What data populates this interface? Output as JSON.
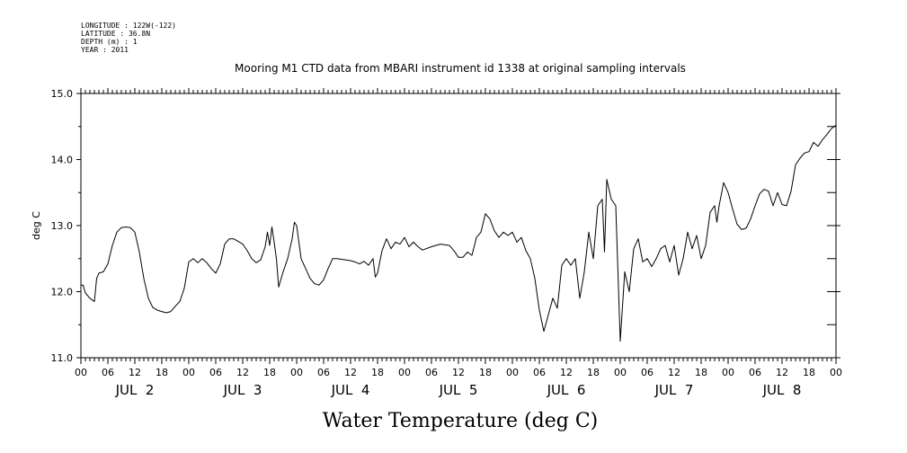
{
  "header": {
    "longitude": "LONGITUDE : 122W(-122)",
    "latitude": "LATITUDE : 36.8N",
    "depth": "DEPTH (m) : 1",
    "year": "YEAR : 2011"
  },
  "chart_data": {
    "type": "line",
    "title": "Mooring M1 CTD data from MBARI instrument id 1338 at original sampling intervals",
    "ylabel": "deg C",
    "xlabel": "Water Temperature (deg C)",
    "ylim": [
      11.0,
      15.0
    ],
    "xlim_hours": [
      0,
      168
    ],
    "y_ticks": [
      "11.0",
      "12.0",
      "13.0",
      "14.0",
      "15.0"
    ],
    "x_hour_ticks": [
      "00",
      "06",
      "12",
      "18",
      "00",
      "06",
      "12",
      "18",
      "00",
      "06",
      "12",
      "18",
      "00",
      "06",
      "12",
      "18",
      "00",
      "06",
      "12",
      "18",
      "00",
      "06",
      "12",
      "18",
      "00",
      "06",
      "12",
      "18",
      "00"
    ],
    "day_labels": [
      "JUL  2",
      "JUL  3",
      "JUL  4",
      "JUL  5",
      "JUL  6",
      "JUL  7",
      "JUL  8"
    ],
    "series": [
      {
        "color": "#000000",
        "points": [
          [
            0,
            12.1
          ],
          [
            0.5,
            12.1
          ],
          [
            1,
            11.98
          ],
          [
            2,
            11.9
          ],
          [
            3,
            11.85
          ],
          [
            3.5,
            12.2
          ],
          [
            4,
            12.28
          ],
          [
            5,
            12.3
          ],
          [
            6,
            12.42
          ],
          [
            7,
            12.7
          ],
          [
            8,
            12.9
          ],
          [
            9,
            12.97
          ],
          [
            10,
            12.98
          ],
          [
            11,
            12.97
          ],
          [
            12,
            12.9
          ],
          [
            13,
            12.6
          ],
          [
            14,
            12.2
          ],
          [
            15,
            11.9
          ],
          [
            16,
            11.76
          ],
          [
            17,
            11.72
          ],
          [
            18,
            11.7
          ],
          [
            19,
            11.68
          ],
          [
            20,
            11.7
          ],
          [
            21,
            11.78
          ],
          [
            22,
            11.85
          ],
          [
            23,
            12.05
          ],
          [
            24,
            12.45
          ],
          [
            25,
            12.5
          ],
          [
            26,
            12.44
          ],
          [
            27,
            12.5
          ],
          [
            28,
            12.44
          ],
          [
            29,
            12.35
          ],
          [
            30,
            12.28
          ],
          [
            31,
            12.42
          ],
          [
            32,
            12.72
          ],
          [
            33,
            12.8
          ],
          [
            34,
            12.8
          ],
          [
            35,
            12.76
          ],
          [
            36,
            12.72
          ],
          [
            37,
            12.62
          ],
          [
            38,
            12.5
          ],
          [
            39,
            12.44
          ],
          [
            40,
            12.48
          ],
          [
            41,
            12.68
          ],
          [
            41.5,
            12.9
          ],
          [
            42,
            12.7
          ],
          [
            42.5,
            12.98
          ],
          [
            43,
            12.75
          ],
          [
            43.5,
            12.5
          ],
          [
            44,
            12.07
          ],
          [
            45,
            12.3
          ],
          [
            46,
            12.5
          ],
          [
            47,
            12.8
          ],
          [
            47.5,
            13.05
          ],
          [
            48,
            13.0
          ],
          [
            49,
            12.5
          ],
          [
            50,
            12.35
          ],
          [
            51,
            12.2
          ],
          [
            52,
            12.12
          ],
          [
            53,
            12.1
          ],
          [
            54,
            12.18
          ],
          [
            55,
            12.35
          ],
          [
            56,
            12.5
          ],
          [
            57,
            12.5
          ],
          [
            58,
            12.49
          ],
          [
            59,
            12.48
          ],
          [
            60,
            12.47
          ],
          [
            61,
            12.45
          ],
          [
            62,
            12.42
          ],
          [
            63,
            12.46
          ],
          [
            64,
            12.4
          ],
          [
            65,
            12.5
          ],
          [
            65.5,
            12.22
          ],
          [
            66,
            12.28
          ],
          [
            67,
            12.62
          ],
          [
            68,
            12.8
          ],
          [
            69,
            12.65
          ],
          [
            70,
            12.75
          ],
          [
            71,
            12.72
          ],
          [
            72,
            12.82
          ],
          [
            73,
            12.68
          ],
          [
            74,
            12.75
          ],
          [
            75,
            12.68
          ],
          [
            76,
            12.63
          ],
          [
            78,
            12.68
          ],
          [
            80,
            12.72
          ],
          [
            82,
            12.7
          ],
          [
            83,
            12.62
          ],
          [
            84,
            12.52
          ],
          [
            85,
            12.52
          ],
          [
            86,
            12.6
          ],
          [
            87,
            12.55
          ],
          [
            88,
            12.82
          ],
          [
            89,
            12.9
          ],
          [
            90,
            13.18
          ],
          [
            91,
            13.1
          ],
          [
            92,
            12.92
          ],
          [
            93,
            12.82
          ],
          [
            94,
            12.9
          ],
          [
            95,
            12.85
          ],
          [
            96,
            12.9
          ],
          [
            97,
            12.75
          ],
          [
            98,
            12.82
          ],
          [
            99,
            12.62
          ],
          [
            100,
            12.5
          ],
          [
            101,
            12.2
          ],
          [
            102,
            11.72
          ],
          [
            103,
            11.4
          ],
          [
            104,
            11.65
          ],
          [
            105,
            11.9
          ],
          [
            106,
            11.75
          ],
          [
            107,
            12.4
          ],
          [
            108,
            12.5
          ],
          [
            109,
            12.4
          ],
          [
            110,
            12.5
          ],
          [
            111,
            11.9
          ],
          [
            112,
            12.3
          ],
          [
            113,
            12.9
          ],
          [
            114,
            12.5
          ],
          [
            115,
            13.3
          ],
          [
            116,
            13.4
          ],
          [
            116.5,
            12.6
          ],
          [
            117,
            13.7
          ],
          [
            118,
            13.4
          ],
          [
            119,
            13.3
          ],
          [
            120,
            11.25
          ],
          [
            121,
            12.3
          ],
          [
            122,
            12.0
          ],
          [
            123,
            12.65
          ],
          [
            124,
            12.8
          ],
          [
            125,
            12.45
          ],
          [
            126,
            12.5
          ],
          [
            127,
            12.38
          ],
          [
            128,
            12.5
          ],
          [
            129,
            12.65
          ],
          [
            130,
            12.7
          ],
          [
            131,
            12.45
          ],
          [
            132,
            12.7
          ],
          [
            133,
            12.25
          ],
          [
            134,
            12.5
          ],
          [
            135,
            12.9
          ],
          [
            136,
            12.65
          ],
          [
            137,
            12.85
          ],
          [
            138,
            12.5
          ],
          [
            139,
            12.7
          ],
          [
            140,
            13.2
          ],
          [
            141,
            13.3
          ],
          [
            141.5,
            13.05
          ],
          [
            142,
            13.3
          ],
          [
            143,
            13.65
          ],
          [
            144,
            13.5
          ],
          [
            145,
            13.25
          ],
          [
            146,
            13.02
          ],
          [
            147,
            12.94
          ],
          [
            148,
            12.96
          ],
          [
            149,
            13.1
          ],
          [
            150,
            13.3
          ],
          [
            151,
            13.48
          ],
          [
            152,
            13.55
          ],
          [
            153,
            13.52
          ],
          [
            154,
            13.3
          ],
          [
            155,
            13.5
          ],
          [
            156,
            13.32
          ],
          [
            157,
            13.3
          ],
          [
            158,
            13.52
          ],
          [
            159,
            13.92
          ],
          [
            160,
            14.02
          ],
          [
            161,
            14.1
          ],
          [
            162,
            14.12
          ],
          [
            163,
            14.26
          ],
          [
            164,
            14.2
          ],
          [
            165,
            14.3
          ],
          [
            166,
            14.38
          ],
          [
            167,
            14.47
          ],
          [
            168,
            14.52
          ]
        ]
      }
    ]
  }
}
